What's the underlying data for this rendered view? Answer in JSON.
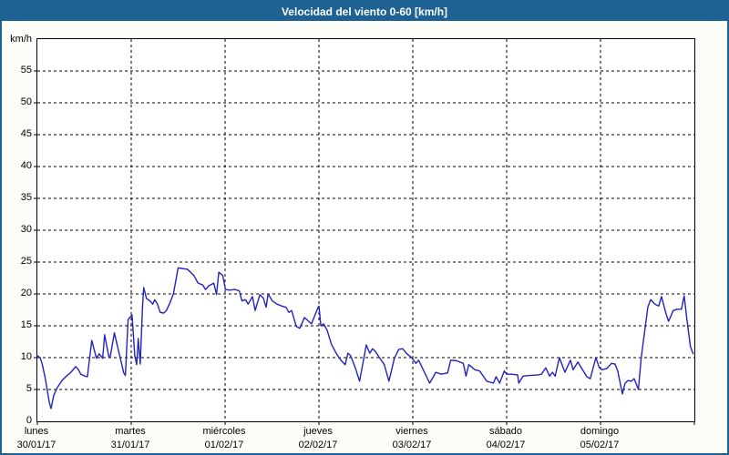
{
  "window": {
    "title": "Velocidad del viento 0-60 [km/h]",
    "border_color": "#1e6294",
    "titlebar_background": "#1e6294",
    "titlebar_text_color": "#ffffff",
    "background": "#fcfdf8"
  },
  "chart_data": {
    "type": "line",
    "title": "Velocidad del viento 0-60 [km/h]",
    "ylabel": "km/h",
    "xlabel": "",
    "ylim": [
      0,
      60
    ],
    "ytick_step": 5,
    "ytick_labels": [
      "0",
      "5",
      "10",
      "15",
      "20",
      "25",
      "30",
      "35",
      "40",
      "45",
      "50",
      "55"
    ],
    "grid": {
      "style": "dashed",
      "color": "#000000"
    },
    "legend_position": "none",
    "plot_background": "#ffffff",
    "x_axis": {
      "unit": "hours",
      "range_hours": [
        0,
        168
      ],
      "day_ticks": [
        {
          "name": "lunes",
          "date": "30/01/17"
        },
        {
          "name": "martes",
          "date": "31/01/17"
        },
        {
          "name": "miércoles",
          "date": "01/02/17"
        },
        {
          "name": "jueves",
          "date": "02/02/17"
        },
        {
          "name": "viernes",
          "date": "03/02/17"
        },
        {
          "name": "sábado",
          "date": "04/02/17"
        },
        {
          "name": "domingo",
          "date": "05/02/17"
        }
      ]
    },
    "series": [
      {
        "name": "velocidad-del-viento",
        "color": "#2323bd",
        "points_hour_kmh": [
          [
            0,
            10.3
          ],
          [
            0.7,
            10
          ],
          [
            1.2,
            9.1
          ],
          [
            1.9,
            7.1
          ],
          [
            2.6,
            4.6
          ],
          [
            3,
            3.1
          ],
          [
            3.5,
            2
          ],
          [
            4.2,
            4.1
          ],
          [
            5.1,
            5.3
          ],
          [
            6.3,
            6.4
          ],
          [
            7.4,
            7.1
          ],
          [
            8.6,
            7.7
          ],
          [
            9.8,
            8.6
          ],
          [
            10.5,
            8.1
          ],
          [
            11.1,
            7.4
          ],
          [
            12.1,
            7.1
          ],
          [
            12.8,
            7
          ],
          [
            13.9,
            12.7
          ],
          [
            15.1,
            9.9
          ],
          [
            15.8,
            10.6
          ],
          [
            16.7,
            9.9
          ],
          [
            17.2,
            13.6
          ],
          [
            18.3,
            10.1
          ],
          [
            18.6,
            10
          ],
          [
            19.7,
            13.9
          ],
          [
            20.9,
            10.7
          ],
          [
            22.1,
            7.6
          ],
          [
            22.5,
            7.2
          ],
          [
            23.2,
            16
          ],
          [
            24.2,
            16.7
          ],
          [
            24.9,
            10.3
          ],
          [
            25.4,
            8.9
          ],
          [
            25.8,
            13
          ],
          [
            26.3,
            9
          ],
          [
            26.9,
            18
          ],
          [
            27.2,
            21
          ],
          [
            27.9,
            19.3
          ],
          [
            28.8,
            18.9
          ],
          [
            29.5,
            18.4
          ],
          [
            30,
            19.1
          ],
          [
            30.7,
            18.4
          ],
          [
            31.4,
            17.1
          ],
          [
            32.3,
            17
          ],
          [
            33,
            17.4
          ],
          [
            33.9,
            18.6
          ],
          [
            34.8,
            20
          ],
          [
            36,
            24.1
          ],
          [
            36.9,
            24
          ],
          [
            37.9,
            23.9
          ],
          [
            38.3,
            23.9
          ],
          [
            39.2,
            23.4
          ],
          [
            40,
            22.9
          ],
          [
            41.1,
            21.7
          ],
          [
            42.3,
            21.4
          ],
          [
            43,
            20.7
          ],
          [
            43.9,
            21.3
          ],
          [
            45.1,
            21.7
          ],
          [
            45.8,
            19.9
          ],
          [
            46.4,
            23.4
          ],
          [
            47.4,
            22.9
          ],
          [
            48.1,
            20.7
          ],
          [
            49.2,
            20.6
          ],
          [
            50.4,
            20.7
          ],
          [
            51.6,
            20.5
          ],
          [
            52.3,
            18.9
          ],
          [
            53.2,
            19.1
          ],
          [
            53.9,
            18.4
          ],
          [
            55,
            19.6
          ],
          [
            55.7,
            17.4
          ],
          [
            56.9,
            19.9
          ],
          [
            57.8,
            19.3
          ],
          [
            58.5,
            17.9
          ],
          [
            59,
            20
          ],
          [
            60.1,
            18.9
          ],
          [
            61.3,
            18.4
          ],
          [
            62.5,
            18.1
          ],
          [
            63.6,
            17.9
          ],
          [
            64.3,
            17.1
          ],
          [
            65,
            17.4
          ],
          [
            66.2,
            14.9
          ],
          [
            67.1,
            14.6
          ],
          [
            68.3,
            16.3
          ],
          [
            69.4,
            15.7
          ],
          [
            70.1,
            15.3
          ],
          [
            71.8,
            17.9
          ],
          [
            72,
            18.1
          ],
          [
            72.5,
            15
          ],
          [
            73.2,
            15.3
          ],
          [
            74.1,
            14.3
          ],
          [
            75.2,
            12.1
          ],
          [
            76.4,
            10.7
          ],
          [
            77.6,
            9.6
          ],
          [
            78.7,
            8.9
          ],
          [
            79.4,
            10.7
          ],
          [
            80.1,
            10.3
          ],
          [
            81.3,
            8.4
          ],
          [
            82.4,
            6.3
          ],
          [
            83.6,
            10.3
          ],
          [
            84.1,
            12
          ],
          [
            85,
            10.7
          ],
          [
            85.7,
            11.4
          ],
          [
            86.4,
            11
          ],
          [
            87.6,
            9.9
          ],
          [
            88.7,
            8.9
          ],
          [
            89.9,
            6.3
          ],
          [
            91.3,
            9.9
          ],
          [
            92.4,
            11.3
          ],
          [
            93.4,
            11.4
          ],
          [
            94.5,
            10.6
          ],
          [
            95.7,
            10
          ],
          [
            96.8,
            9.1
          ],
          [
            97.5,
            9.6
          ],
          [
            100.3,
            6
          ],
          [
            101.9,
            7.7
          ],
          [
            103.3,
            7.4
          ],
          [
            104.9,
            7.6
          ],
          [
            105.7,
            9.6
          ],
          [
            107.3,
            9.5
          ],
          [
            108.9,
            9.1
          ],
          [
            109.6,
            7.1
          ],
          [
            110.3,
            8.9
          ],
          [
            111.9,
            8.1
          ],
          [
            113.1,
            7.9
          ],
          [
            114.9,
            6.3
          ],
          [
            116.6,
            6
          ],
          [
            117.3,
            7
          ],
          [
            118.2,
            6
          ],
          [
            119.4,
            7.9
          ],
          [
            120,
            7.4
          ],
          [
            121.2,
            7.4
          ],
          [
            122.8,
            7.3
          ],
          [
            123.1,
            6
          ],
          [
            124.2,
            7.1
          ],
          [
            125.9,
            7.2
          ],
          [
            128.2,
            7.3
          ],
          [
            128.9,
            7.4
          ],
          [
            130,
            8.4
          ],
          [
            131,
            7.1
          ],
          [
            131.7,
            7.7
          ],
          [
            132.4,
            7.1
          ],
          [
            133.5,
            10
          ],
          [
            134.9,
            7.7
          ],
          [
            136.3,
            9.6
          ],
          [
            137,
            8.1
          ],
          [
            138.2,
            9.3
          ],
          [
            140.5,
            7
          ],
          [
            141.4,
            6.7
          ],
          [
            142.8,
            10
          ],
          [
            143.7,
            8.4
          ],
          [
            144.4,
            8.1
          ],
          [
            145.6,
            8.3
          ],
          [
            146.8,
            9.1
          ],
          [
            147.7,
            9
          ],
          [
            148.4,
            7.9
          ],
          [
            149.6,
            4.3
          ],
          [
            150.3,
            6
          ],
          [
            151,
            6.4
          ],
          [
            151.9,
            6.3
          ],
          [
            152.6,
            6.7
          ],
          [
            153.7,
            5
          ],
          [
            154.4,
            9.9
          ],
          [
            155.4,
            14.6
          ],
          [
            156.1,
            17.9
          ],
          [
            156.8,
            19.1
          ],
          [
            157.9,
            18.4
          ],
          [
            158.9,
            18.1
          ],
          [
            159.6,
            19.6
          ],
          [
            160.7,
            17
          ],
          [
            161.4,
            15.7
          ],
          [
            162.6,
            17.4
          ],
          [
            163.7,
            17.6
          ],
          [
            164.7,
            17.6
          ],
          [
            165.4,
            19.7
          ],
          [
            166.1,
            16
          ],
          [
            167,
            11.7
          ],
          [
            167.7,
            10.6
          ]
        ]
      }
    ]
  }
}
